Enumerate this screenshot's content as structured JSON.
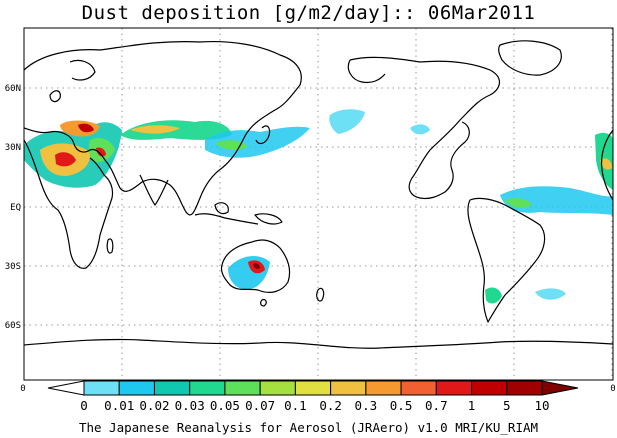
{
  "title": "Dust deposition [g/m2/day]:: 06Mar2011",
  "footer": "The Japanese Reanalysis for Aerosol (JRAero) v1.0 MRI/KU_RIAM",
  "lat_labels": [
    "60N",
    "30N",
    "EQ",
    "30S",
    "60S"
  ],
  "lon_edge_labels": [
    "0",
    "0"
  ],
  "legend": {
    "thresholds": [
      "0",
      "0.01",
      "0.02",
      "0.03",
      "0.05",
      "0.07",
      "0.1",
      "0.2",
      "0.3",
      "0.5",
      "0.7",
      "1",
      "5",
      "10"
    ],
    "colors": [
      "#ffffff",
      "#6ee0f5",
      "#1ec8ee",
      "#10c8b0",
      "#20d890",
      "#5ee05a",
      "#a6e040",
      "#e0e040",
      "#f0c040",
      "#f59a30",
      "#f06030",
      "#e01818",
      "#c00000",
      "#a00000",
      "#800000"
    ]
  },
  "colors": {
    "land_outline": "#000000",
    "grid": "#9a9a9a",
    "frame": "#000000"
  }
}
